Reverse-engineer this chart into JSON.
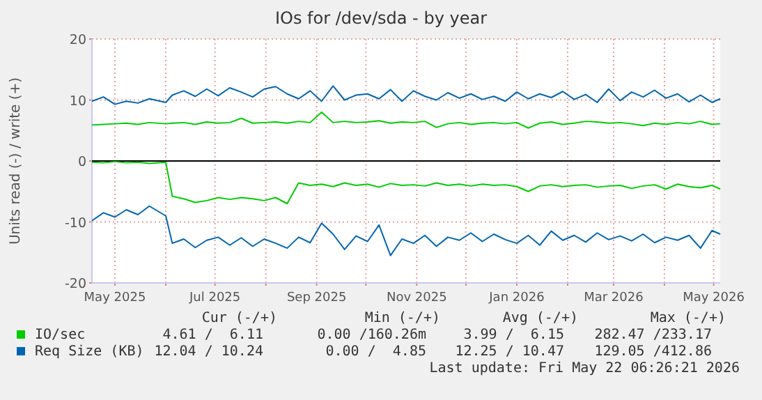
{
  "chart_data": {
    "type": "line",
    "title": "IOs for /dev/sda - by year",
    "ylabel": "Units read (-) / write (+)",
    "x": [
      "2025-04-17",
      "2025-04-24",
      "2025-05-01",
      "2025-05-08",
      "2025-05-15",
      "2025-05-22",
      "2025-06-01",
      "2025-06-05",
      "2025-06-12",
      "2025-06-19",
      "2025-06-26",
      "2025-07-03",
      "2025-07-10",
      "2025-07-17",
      "2025-07-24",
      "2025-07-31",
      "2025-08-07",
      "2025-08-14",
      "2025-08-21",
      "2025-08-28",
      "2025-09-04",
      "2025-09-11",
      "2025-09-18",
      "2025-09-25",
      "2025-10-02",
      "2025-10-09",
      "2025-10-16",
      "2025-10-23",
      "2025-10-30",
      "2025-11-06",
      "2025-11-13",
      "2025-11-20",
      "2025-11-27",
      "2025-12-04",
      "2025-12-11",
      "2025-12-18",
      "2025-12-25",
      "2026-01-01",
      "2026-01-08",
      "2026-01-15",
      "2026-01-22",
      "2026-01-29",
      "2026-02-05",
      "2026-02-12",
      "2026-02-19",
      "2026-02-26",
      "2026-03-05",
      "2026-03-12",
      "2026-03-19",
      "2026-03-26",
      "2026-04-02",
      "2026-04-09",
      "2026-04-16",
      "2026-04-23",
      "2026-04-30",
      "2026-05-05"
    ],
    "series": [
      {
        "name": "IO/sec",
        "color": "#00cc00",
        "values": [
          5.9,
          6.0,
          6.1,
          6.2,
          6.0,
          6.3,
          6.1,
          6.2,
          6.3,
          6.0,
          6.4,
          6.2,
          6.3,
          7.0,
          6.2,
          6.3,
          6.4,
          6.2,
          6.5,
          6.3,
          8.0,
          6.3,
          6.5,
          6.3,
          6.4,
          6.6,
          6.2,
          6.4,
          6.3,
          6.5,
          5.5,
          6.1,
          6.3,
          6.0,
          6.2,
          6.3,
          6.1,
          6.3,
          5.4,
          6.2,
          6.4,
          6.0,
          6.2,
          6.5,
          6.4,
          6.2,
          6.3,
          6.1,
          5.8,
          6.2,
          6.0,
          6.3,
          6.1,
          6.5,
          6.0,
          6.1
        ]
      },
      {
        "color": "#00cc00",
        "values": [
          -0.2,
          -0.3,
          -0.1,
          -0.3,
          -0.2,
          -0.4,
          -0.2,
          -5.8,
          -6.2,
          -6.8,
          -6.5,
          -6.0,
          -6.3,
          -6.0,
          -6.2,
          -6.5,
          -6.0,
          -7.0,
          -3.6,
          -4.0,
          -3.8,
          -4.2,
          -3.6,
          -4.0,
          -3.8,
          -4.3,
          -3.7,
          -4.0,
          -3.9,
          -4.1,
          -3.6,
          -4.0,
          -3.8,
          -4.1,
          -3.8,
          -4.0,
          -3.9,
          -4.2,
          -5.0,
          -4.1,
          -3.9,
          -4.2,
          -4.0,
          -3.9,
          -4.3,
          -4.1,
          -4.0,
          -4.5,
          -4.1,
          -3.9,
          -4.6,
          -3.8,
          -4.2,
          -4.4,
          -4.0,
          -4.6
        ]
      },
      {
        "name": "Req Size (KB)",
        "color": "#0066b3",
        "values": [
          9.8,
          10.5,
          9.3,
          9.8,
          9.5,
          10.2,
          9.6,
          10.8,
          11.5,
          10.6,
          11.8,
          10.7,
          12.0,
          11.3,
          10.5,
          11.8,
          12.2,
          11.0,
          10.2,
          11.5,
          9.8,
          12.3,
          10.0,
          10.8,
          11.0,
          10.2,
          11.7,
          9.8,
          11.5,
          10.6,
          10.0,
          11.2,
          10.3,
          11.0,
          10.1,
          10.6,
          9.8,
          11.3,
          10.2,
          11.0,
          10.4,
          11.4,
          10.1,
          10.9,
          9.6,
          11.8,
          9.9,
          11.3,
          10.5,
          11.6,
          10.3,
          11.0,
          9.7,
          10.8,
          9.6,
          10.2
        ]
      },
      {
        "color": "#0066b3",
        "values": [
          -9.8,
          -8.5,
          -9.2,
          -8.0,
          -8.8,
          -7.4,
          -9.0,
          -13.5,
          -12.8,
          -14.2,
          -13.0,
          -12.5,
          -13.8,
          -12.6,
          -14.0,
          -12.8,
          -13.5,
          -14.3,
          -12.5,
          -13.4,
          -10.2,
          -12.0,
          -14.5,
          -12.3,
          -13.2,
          -10.5,
          -15.5,
          -12.8,
          -13.5,
          -12.2,
          -14.0,
          -12.5,
          -13.0,
          -11.8,
          -13.2,
          -12.0,
          -12.9,
          -13.5,
          -12.2,
          -13.8,
          -11.5,
          -13.0,
          -12.2,
          -13.3,
          -11.8,
          -12.9,
          -12.3,
          -13.1,
          -12.0,
          -13.4,
          -12.5,
          -13.0,
          -12.2,
          -14.3,
          -11.4,
          -12.0
        ]
      }
    ],
    "xlim": [
      "2025-04-17",
      "2026-05-05"
    ],
    "xticks": [
      {
        "value": "2025-05-01",
        "label": "May 2025"
      },
      {
        "value": "2025-06-01",
        "label": null
      },
      {
        "value": "2025-07-01",
        "label": "Jul 2025"
      },
      {
        "value": "2025-08-01",
        "label": null
      },
      {
        "value": "2025-09-01",
        "label": "Sep 2025"
      },
      {
        "value": "2025-10-01",
        "label": null
      },
      {
        "value": "2025-11-01",
        "label": "Nov 2025"
      },
      {
        "value": "2025-12-01",
        "label": null
      },
      {
        "value": "2026-01-01",
        "label": "Jan 2026"
      },
      {
        "value": "2026-02-01",
        "label": null
      },
      {
        "value": "2026-03-01",
        "label": "Mar 2026"
      },
      {
        "value": "2026-04-01",
        "label": null
      },
      {
        "value": "2026-05-01",
        "label": "May 2026"
      }
    ],
    "ylim": [
      -20,
      20
    ],
    "yticks": [
      -20,
      -10,
      0,
      10,
      20
    ],
    "ref_lines": [
      {
        "axis": "y",
        "value": 0,
        "color": "#000000"
      }
    ],
    "grid": true,
    "legend": "bottom",
    "annotations": [
      "Cur (-/+)",
      "Min (-/+)",
      "Avg (-/+)",
      "Max (-/+)",
      "4.61 /  6.11",
      "0.00 /160.26m",
      "3.99 /  6.15",
      "282.47 /233.17",
      "12.04 / 10.24",
      "0.00 /  4.85",
      "12.25 / 10.47",
      "129.05 /412.86",
      "Last update: Fri May 22 06:26:21 2026"
    ]
  }
}
